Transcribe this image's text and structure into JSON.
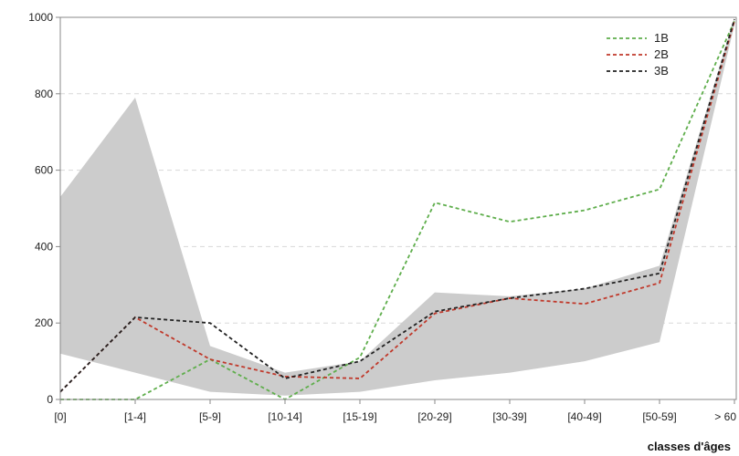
{
  "chart_data": {
    "type": "line",
    "title": "",
    "xlabel": "classes d'âges",
    "ylabel": "",
    "categories": [
      "[0]",
      "[1-4]",
      "[5-9]",
      "[10-14]",
      "[15-19]",
      "[20-29]",
      "[30-39]",
      "[40-49]",
      "[50-59]",
      "> 60"
    ],
    "ylim": [
      0,
      1000
    ],
    "yticks": [
      0,
      200,
      400,
      600,
      800,
      1000
    ],
    "grid": "horizontal-dashed",
    "legend_position": "top-right",
    "band": {
      "lower": [
        120,
        70,
        20,
        10,
        20,
        50,
        70,
        100,
        150,
        980
      ],
      "upper": [
        530,
        790,
        140,
        70,
        100,
        280,
        270,
        290,
        350,
        1000
      ]
    },
    "series": [
      {
        "name": "1B",
        "color": "#5fae4c",
        "values": [
          0,
          0,
          105,
          0,
          110,
          515,
          465,
          495,
          550,
          990
        ]
      },
      {
        "name": "2B",
        "color": "#c0392b",
        "values": [
          20,
          215,
          105,
          60,
          55,
          225,
          265,
          250,
          305,
          990
        ]
      },
      {
        "name": "3B",
        "color": "#222222",
        "values": [
          20,
          215,
          200,
          55,
          100,
          230,
          265,
          290,
          330,
          995
        ]
      }
    ],
    "colors": {
      "band": "#cccccc",
      "axis": "#888888",
      "grid": "#d8d8d8"
    }
  }
}
